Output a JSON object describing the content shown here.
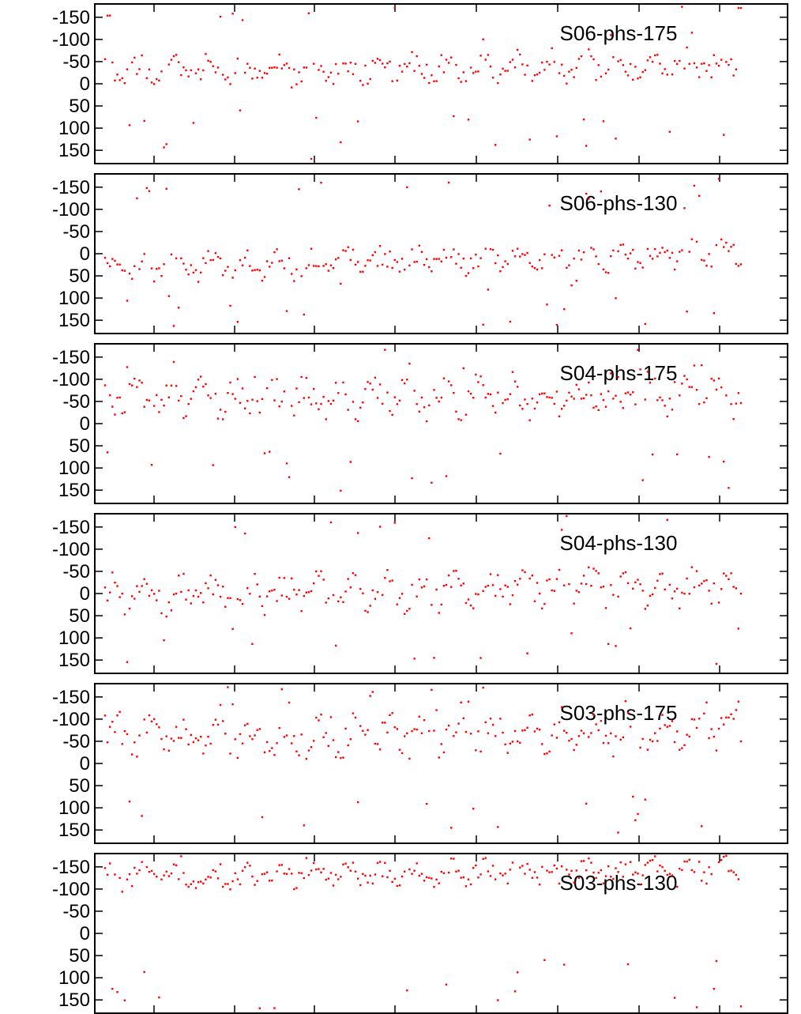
{
  "chart_data": {
    "type": "scatter",
    "marker_color": "#ff0000",
    "y_axis": {
      "inverted": true,
      "ylim": [
        -180,
        180
      ],
      "tick_labels": [
        "-150",
        "-100",
        "-50",
        "0",
        "50",
        "100",
        "150"
      ],
      "ticks": [
        -150,
        -100,
        -50,
        0,
        50,
        100,
        150
      ]
    },
    "x_axis": {
      "tick_labels_shown": false,
      "tick_count": 8
    },
    "grid": false,
    "panels": [
      {
        "name": "S06-phs-175",
        "seed": 11,
        "base": -25,
        "drift": -20,
        "spread": 30
      },
      {
        "name": "S06-phs-130",
        "seed": 23,
        "base": 35,
        "drift": -35,
        "spread": 28
      },
      {
        "name": "S04-phs-175",
        "seed": 37,
        "base": -55,
        "drift": -10,
        "spread": 40
      },
      {
        "name": "S04-phs-130",
        "seed": 41,
        "base": 5,
        "drift": -25,
        "spread": 38
      },
      {
        "name": "S03-phs-175",
        "seed": 53,
        "base": -55,
        "drift": -15,
        "spread": 40
      },
      {
        "name": "S03-phs-130",
        "seed": 67,
        "base": -125,
        "drift": -20,
        "spread": 25
      }
    ]
  }
}
